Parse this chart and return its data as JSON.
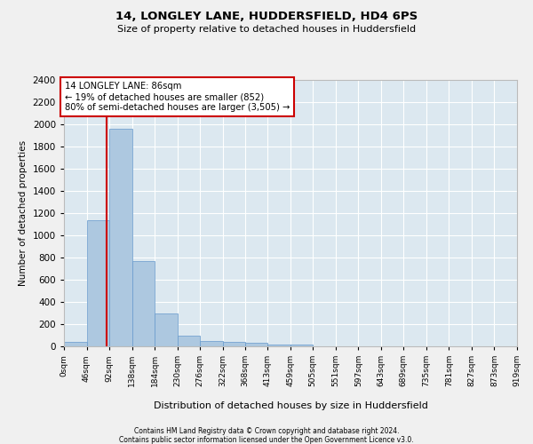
{
  "title1": "14, LONGLEY LANE, HUDDERSFIELD, HD4 6PS",
  "title2": "Size of property relative to detached houses in Huddersfield",
  "xlabel": "Distribution of detached houses by size in Huddersfield",
  "ylabel": "Number of detached properties",
  "bar_values": [
    40,
    1140,
    1960,
    770,
    300,
    100,
    50,
    40,
    30,
    20,
    20,
    0,
    0,
    0,
    0,
    0,
    0,
    0,
    0,
    0
  ],
  "bin_edges": [
    0,
    46,
    92,
    138,
    184,
    230,
    276,
    322,
    368,
    413,
    459,
    505,
    551,
    597,
    643,
    689,
    735,
    781,
    827,
    873,
    919
  ],
  "x_tick_labels": [
    "0sqm",
    "46sqm",
    "92sqm",
    "138sqm",
    "184sqm",
    "230sqm",
    "276sqm",
    "322sqm",
    "368sqm",
    "413sqm",
    "459sqm",
    "505sqm",
    "551sqm",
    "597sqm",
    "643sqm",
    "689sqm",
    "735sqm",
    "781sqm",
    "827sqm",
    "873sqm",
    "919sqm"
  ],
  "bar_color": "#adc8e0",
  "bar_edge_color": "#6699cc",
  "figure_bg": "#f0f0f0",
  "axes_bg": "#dce8f0",
  "grid_color": "#ffffff",
  "property_line_x": 86,
  "property_line_color": "#cc0000",
  "annotation_text": "14 LONGLEY LANE: 86sqm\n← 19% of detached houses are smaller (852)\n80% of semi-detached houses are larger (3,505) →",
  "annotation_box_color": "#cc0000",
  "ylim": [
    0,
    2400
  ],
  "yticks": [
    0,
    200,
    400,
    600,
    800,
    1000,
    1200,
    1400,
    1600,
    1800,
    2000,
    2200,
    2400
  ],
  "footer1": "Contains HM Land Registry data © Crown copyright and database right 2024.",
  "footer2": "Contains public sector information licensed under the Open Government Licence v3.0."
}
